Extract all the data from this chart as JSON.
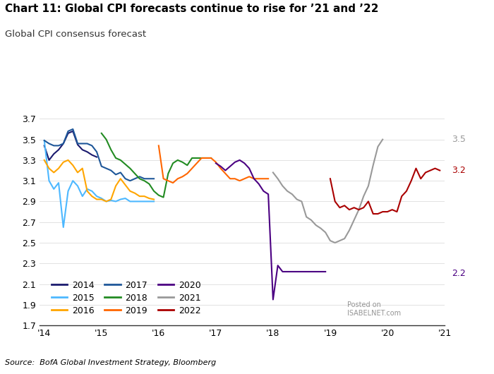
{
  "title": "Chart 11: Global CPI forecasts continue to rise for ’21 and ’22",
  "subtitle": "Global CPI consensus forecast",
  "source": "BofA Global Investment Strategy, Bloomberg",
  "ylim": [
    1.7,
    3.8
  ],
  "yticks": [
    1.7,
    1.9,
    2.1,
    2.3,
    2.5,
    2.7,
    2.9,
    3.1,
    3.3,
    3.5,
    3.7
  ],
  "xtick_labels": [
    "'14",
    "'15",
    "'16",
    "'17",
    "'18",
    "'19",
    "'20",
    "'21"
  ],
  "xtick_positions": [
    0,
    12,
    24,
    36,
    48,
    60,
    72,
    84
  ],
  "end_labels": {
    "2021": {
      "value": 3.5,
      "color": "#999999"
    },
    "2022": {
      "value": 3.2,
      "color": "#aa0000"
    },
    "2020": {
      "value": 2.2,
      "color": "#4b0082"
    }
  },
  "series": {
    "2014": {
      "color": "#1a1a6e",
      "x": [
        0,
        1,
        2,
        3,
        4,
        5,
        6,
        7,
        8,
        9,
        10,
        11
      ],
      "y": [
        3.44,
        3.3,
        3.36,
        3.4,
        3.46,
        3.56,
        3.58,
        3.45,
        3.4,
        3.38,
        3.35,
        3.33
      ]
    },
    "2015": {
      "color": "#4db8ff",
      "x": [
        0,
        1,
        2,
        3,
        4,
        5,
        6,
        7,
        8,
        9,
        10,
        11,
        12,
        13,
        14,
        15,
        16,
        17,
        18,
        19,
        20,
        21,
        22,
        23
      ],
      "y": [
        3.49,
        3.1,
        3.02,
        3.08,
        2.65,
        3.0,
        3.1,
        3.05,
        2.95,
        3.02,
        3.0,
        2.95,
        2.93,
        2.9,
        2.91,
        2.9,
        2.92,
        2.93,
        2.9,
        2.9,
        2.9,
        2.9,
        2.9,
        2.9
      ]
    },
    "2016": {
      "color": "#ffa500",
      "x": [
        0,
        1,
        2,
        3,
        4,
        5,
        6,
        7,
        8,
        9,
        10,
        11,
        12,
        13,
        14,
        15,
        16,
        17,
        18,
        19,
        20,
        21,
        22,
        23
      ],
      "y": [
        3.3,
        3.22,
        3.18,
        3.22,
        3.28,
        3.3,
        3.25,
        3.18,
        3.22,
        3.0,
        2.95,
        2.92,
        2.92,
        2.9,
        2.92,
        3.05,
        3.12,
        3.06,
        3.0,
        2.98,
        2.95,
        2.95,
        2.93,
        2.92
      ]
    },
    "2017": {
      "color": "#1e5799",
      "x": [
        0,
        1,
        2,
        3,
        4,
        5,
        6,
        7,
        8,
        9,
        10,
        11,
        12,
        13,
        14,
        15,
        16,
        17,
        18,
        19,
        20,
        21,
        22,
        23
      ],
      "y": [
        3.49,
        3.46,
        3.44,
        3.44,
        3.46,
        3.58,
        3.6,
        3.46,
        3.46,
        3.46,
        3.44,
        3.38,
        3.24,
        3.22,
        3.2,
        3.16,
        3.18,
        3.12,
        3.1,
        3.12,
        3.14,
        3.12,
        3.12,
        3.12
      ]
    },
    "2018": {
      "color": "#228b22",
      "x": [
        12,
        13,
        14,
        15,
        16,
        17,
        18,
        19,
        20,
        21,
        22,
        23,
        24,
        25,
        26,
        27,
        28,
        29,
        30,
        31,
        32,
        33,
        34,
        35
      ],
      "y": [
        3.56,
        3.5,
        3.4,
        3.32,
        3.3,
        3.26,
        3.22,
        3.17,
        3.12,
        3.1,
        3.07,
        3.0,
        2.96,
        2.94,
        3.17,
        3.27,
        3.3,
        3.28,
        3.25,
        3.32,
        3.32,
        3.32,
        3.32,
        3.32
      ]
    },
    "2019": {
      "color": "#ff6600",
      "x": [
        24,
        25,
        26,
        27,
        28,
        29,
        30,
        31,
        32,
        33,
        34,
        35,
        36,
        37,
        38,
        39,
        40,
        41,
        42,
        43,
        44,
        45,
        46,
        47
      ],
      "y": [
        3.44,
        3.12,
        3.1,
        3.08,
        3.12,
        3.14,
        3.17,
        3.22,
        3.27,
        3.32,
        3.32,
        3.32,
        3.28,
        3.22,
        3.17,
        3.12,
        3.12,
        3.1,
        3.12,
        3.14,
        3.12,
        3.12,
        3.12,
        3.12
      ]
    },
    "2020": {
      "color": "#4b0082",
      "x": [
        36,
        37,
        38,
        39,
        40,
        41,
        42,
        43,
        44,
        45,
        46,
        47,
        48,
        49,
        50,
        51,
        52,
        53,
        54,
        55,
        56,
        57,
        58,
        59
      ],
      "y": [
        3.27,
        3.24,
        3.2,
        3.24,
        3.28,
        3.3,
        3.27,
        3.22,
        3.12,
        3.07,
        3.0,
        2.97,
        1.95,
        2.28,
        2.22,
        2.22,
        2.22,
        2.22,
        2.22,
        2.22,
        2.22,
        2.22,
        2.22,
        2.22
      ]
    },
    "2021": {
      "color": "#999999",
      "x": [
        48,
        49,
        50,
        51,
        52,
        53,
        54,
        55,
        56,
        57,
        58,
        59,
        60,
        61,
        62,
        63,
        64,
        65,
        66,
        67,
        68,
        69,
        70,
        71
      ],
      "y": [
        3.18,
        3.12,
        3.05,
        3.0,
        2.97,
        2.92,
        2.9,
        2.75,
        2.72,
        2.67,
        2.64,
        2.6,
        2.52,
        2.5,
        2.52,
        2.54,
        2.62,
        2.72,
        2.82,
        2.95,
        3.05,
        3.25,
        3.43,
        3.5
      ]
    },
    "2022": {
      "color": "#aa0000",
      "x": [
        60,
        61,
        62,
        63,
        64,
        65,
        66,
        67,
        68,
        69,
        70,
        71,
        72,
        73,
        74,
        75,
        76,
        77,
        78,
        79,
        80,
        81,
        82,
        83
      ],
      "y": [
        3.12,
        2.9,
        2.84,
        2.86,
        2.82,
        2.84,
        2.82,
        2.84,
        2.9,
        2.78,
        2.78,
        2.8,
        2.8,
        2.82,
        2.8,
        2.95,
        3.0,
        3.1,
        3.22,
        3.12,
        3.18,
        3.2,
        3.22,
        3.2
      ]
    }
  },
  "legend_entries": [
    {
      "label": "2014",
      "color": "#1a1a6e"
    },
    {
      "label": "2015",
      "color": "#4db8ff"
    },
    {
      "label": "2016",
      "color": "#ffa500"
    },
    {
      "label": "2017",
      "color": "#1e5799"
    },
    {
      "label": "2018",
      "color": "#228b22"
    },
    {
      "label": "2019",
      "color": "#ff6600"
    },
    {
      "label": "2020",
      "color": "#4b0082"
    },
    {
      "label": "2021",
      "color": "#999999"
    },
    {
      "label": "2022",
      "color": "#aa0000"
    }
  ]
}
